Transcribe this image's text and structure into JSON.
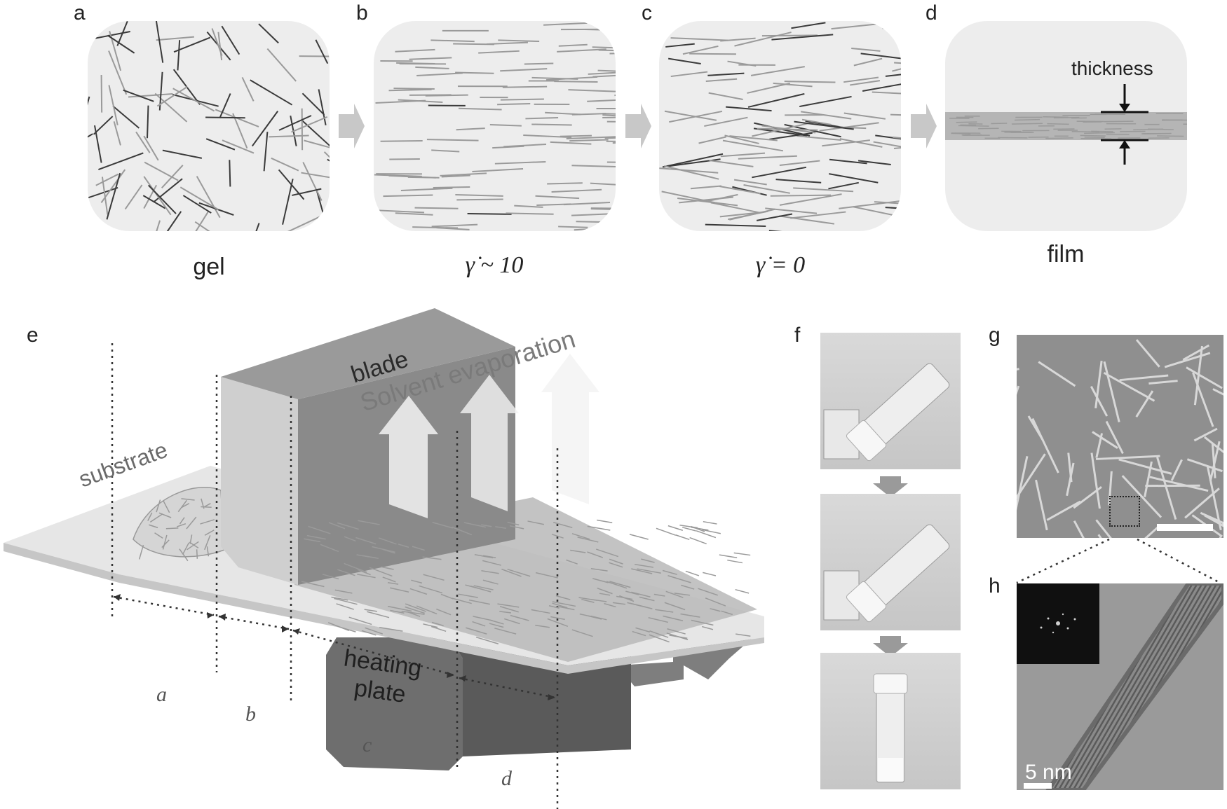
{
  "panels": {
    "a": {
      "letter": "a",
      "caption": "gel"
    },
    "b": {
      "letter": "b",
      "caption": "γ̇ ~ 10"
    },
    "c": {
      "letter": "c",
      "caption": "γ̇ = 0"
    },
    "d": {
      "letter": "d",
      "caption": "film",
      "annotation": "thickness"
    },
    "e": {
      "letter": "e"
    },
    "f": {
      "letter": "f"
    },
    "g": {
      "letter": "g"
    },
    "h": {
      "letter": "h",
      "scale_label": "5 nm"
    }
  },
  "schematic": {
    "blade": "blade",
    "substrate": "substrate",
    "evaporation": "Solvent evaporation",
    "heating_plate_line1": "heating",
    "heating_plate_line2": "plate",
    "region_a": "a",
    "region_b": "b",
    "region_c": "c",
    "region_d": "d"
  },
  "colors": {
    "box_fill": "#ededed",
    "rod_light": "#9a9a9a",
    "rod_dark": "#3a3a3a",
    "transition_arrow": "#c8c8c8"
  }
}
